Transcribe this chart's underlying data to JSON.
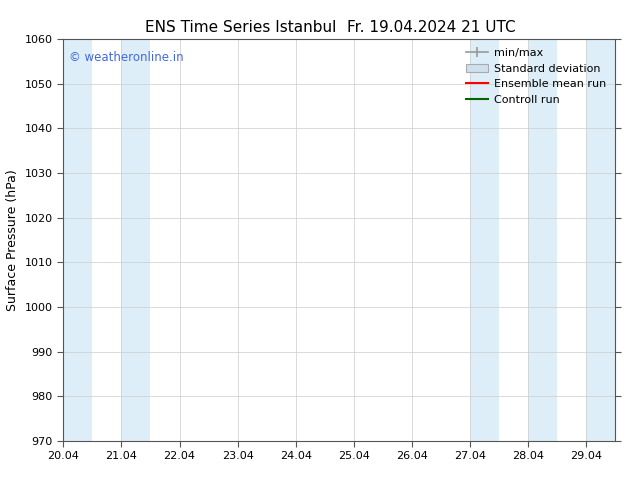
{
  "title": "ENS Time Series Istanbul",
  "title2": "Fr. 19.04.2024 21 UTC",
  "ylabel": "Surface Pressure (hPa)",
  "ylim": [
    970,
    1060
  ],
  "yticks": [
    970,
    980,
    990,
    1000,
    1010,
    1020,
    1030,
    1040,
    1050,
    1060
  ],
  "xtick_labels": [
    "20.04",
    "21.04",
    "22.04",
    "23.04",
    "24.04",
    "25.04",
    "26.04",
    "27.04",
    "28.04",
    "29.04"
  ],
  "xtick_positions": [
    20.04,
    21.04,
    22.04,
    23.04,
    24.04,
    25.04,
    26.04,
    27.04,
    28.04,
    29.04
  ],
  "xlim": [
    20.04,
    29.54
  ],
  "shaded_bands": [
    {
      "x_start": 20.04,
      "x_end": 20.54
    },
    {
      "x_start": 21.04,
      "x_end": 21.54
    },
    {
      "x_start": 27.04,
      "x_end": 27.54
    },
    {
      "x_start": 28.04,
      "x_end": 28.54
    },
    {
      "x_start": 29.04,
      "x_end": 29.54
    }
  ],
  "band_color": "#ddeef8",
  "background_color": "#ffffff",
  "watermark_text": "© weatheronline.in",
  "watermark_color": "#4169e1",
  "legend_items": [
    {
      "label": "min/max",
      "color": "#aaaaaa",
      "style": "errorbar"
    },
    {
      "label": "Standard deviation",
      "color": "#bbccdd",
      "style": "box"
    },
    {
      "label": "Ensemble mean run",
      "color": "#ff0000",
      "style": "line"
    },
    {
      "label": "Controll run",
      "color": "#006400",
      "style": "line"
    }
  ],
  "title_fontsize": 11,
  "axis_fontsize": 9,
  "tick_fontsize": 8,
  "legend_fontsize": 8
}
